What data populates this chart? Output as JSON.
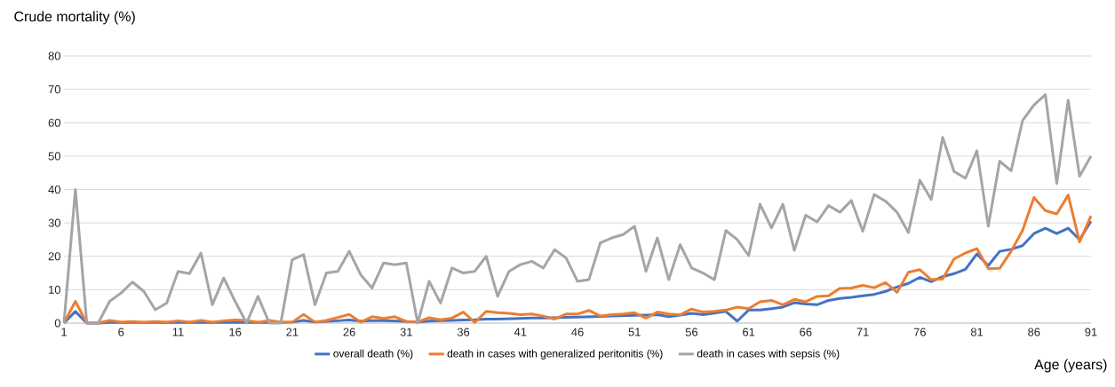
{
  "chart_data": {
    "type": "line",
    "ylabel": "Crude mortality (%)",
    "xlabel": "Age (years)",
    "x": [
      1,
      2,
      3,
      4,
      5,
      6,
      7,
      8,
      9,
      10,
      11,
      12,
      13,
      14,
      15,
      16,
      17,
      18,
      19,
      20,
      21,
      22,
      23,
      24,
      25,
      26,
      27,
      28,
      29,
      30,
      31,
      32,
      33,
      34,
      35,
      36,
      37,
      38,
      39,
      40,
      41,
      42,
      43,
      44,
      45,
      46,
      47,
      48,
      49,
      50,
      51,
      52,
      53,
      54,
      55,
      56,
      57,
      58,
      59,
      60,
      61,
      62,
      63,
      64,
      65,
      66,
      67,
      68,
      69,
      70,
      71,
      72,
      73,
      74,
      75,
      76,
      77,
      78,
      79,
      80,
      81,
      82,
      83,
      84,
      85,
      86,
      87,
      88,
      89,
      90,
      91
    ],
    "xlim": [
      1,
      91
    ],
    "xticks": [
      1,
      6,
      11,
      16,
      21,
      26,
      31,
      36,
      41,
      46,
      51,
      56,
      61,
      66,
      71,
      76,
      81,
      86,
      91
    ],
    "ylim": [
      0,
      80
    ],
    "yticks": [
      0,
      10,
      20,
      30,
      40,
      50,
      60,
      70,
      80
    ],
    "grid": "y",
    "legend": "bottom",
    "marker": "none",
    "line_style": "solid",
    "series": [
      {
        "name": "overall death (%)",
        "color": "#4472c4",
        "values": [
          0,
          3.5,
          0,
          0,
          0.2,
          0.2,
          0.2,
          0.2,
          0.2,
          0.2,
          0.2,
          0.2,
          0.2,
          0.2,
          0.2,
          0.2,
          0.2,
          0.2,
          0.2,
          0.2,
          0.3,
          0.8,
          0.3,
          0.5,
          0.7,
          0.9,
          0.6,
          0.7,
          0.7,
          0.6,
          0.5,
          0.3,
          0.6,
          0.7,
          0.8,
          0.9,
          1.0,
          1.2,
          1.2,
          1.3,
          1.4,
          1.5,
          1.5,
          1.6,
          1.7,
          1.8,
          1.9,
          2.0,
          2.1,
          2.2,
          2.3,
          2.4,
          2.5,
          1.9,
          2.4,
          2.9,
          2.5,
          3.0,
          3.5,
          0.6,
          3.9,
          3.9,
          4.3,
          4.8,
          6.1,
          5.7,
          5.5,
          6.8,
          7.4,
          7.7,
          8.2,
          8.6,
          9.5,
          10.8,
          11.9,
          13.7,
          12.4,
          13.9,
          14.8,
          16.1,
          20.7,
          17.2,
          21.5,
          22.1,
          23.2,
          26.8,
          28.4,
          26.8,
          28.4,
          25,
          30.5
        ]
      },
      {
        "name": "death in cases with generalized peritonitis (%)",
        "color": "#ed7d31",
        "values": [
          0,
          6.5,
          0,
          0,
          0.8,
          0.3,
          0.5,
          0.2,
          0.5,
          0.3,
          0.7,
          0.3,
          0.8,
          0.3,
          0.7,
          0.9,
          0.8,
          0.2,
          0.8,
          0.3,
          0.3,
          2.6,
          0.3,
          0.8,
          1.7,
          2.6,
          0.3,
          1.9,
          1.4,
          1.9,
          0.5,
          0.3,
          1.6,
          1.0,
          1.5,
          3.3,
          0.2,
          3.5,
          3.1,
          2.9,
          2.5,
          2.7,
          2.1,
          1.2,
          2.7,
          2.7,
          3.8,
          2.1,
          2.5,
          2.7,
          3.1,
          1.5,
          3.3,
          2.7,
          2.5,
          4.2,
          3.3,
          3.5,
          3.9,
          4.8,
          4.3,
          6.4,
          6.8,
          5.5,
          7.1,
          6.4,
          8.0,
          8.2,
          10.4,
          10.5,
          11.3,
          10.6,
          12.1,
          9.2,
          15.2,
          16.0,
          13.0,
          13.2,
          19.2,
          21,
          22.3,
          16.3,
          16.4,
          21.5,
          27.7,
          37.6,
          33.7,
          32.7,
          38.3,
          24.3,
          32.1
        ]
      },
      {
        "name": "death in cases with sepsis (%)",
        "color": "#a5a5a5",
        "values": [
          0,
          40,
          0,
          0,
          6.5,
          9,
          12.3,
          9.5,
          4,
          6,
          15.5,
          14.8,
          21,
          5.5,
          13.5,
          6.5,
          0,
          8,
          0,
          0,
          19,
          20.5,
          5.5,
          15,
          15.5,
          21.5,
          14.5,
          10.5,
          18,
          17.5,
          18,
          0,
          12.5,
          6,
          16.5,
          15,
          15.5,
          20,
          8,
          15.5,
          17.5,
          18.5,
          16.5,
          22,
          19.5,
          12.5,
          13,
          24,
          25.5,
          26.5,
          29,
          15.5,
          25.5,
          13,
          23.5,
          16.5,
          15,
          13,
          27.7,
          25,
          20.2,
          35.6,
          28.5,
          35.6,
          21.8,
          32.3,
          30.3,
          35.2,
          33.2,
          36.7,
          27.5,
          38.5,
          36.5,
          33.2,
          27.1,
          42.8,
          37,
          55.6,
          45.4,
          43.4,
          51.6,
          29,
          48.5,
          45.6,
          60.6,
          65.3,
          68.4,
          41.8,
          66.8,
          44,
          50
        ]
      }
    ]
  }
}
